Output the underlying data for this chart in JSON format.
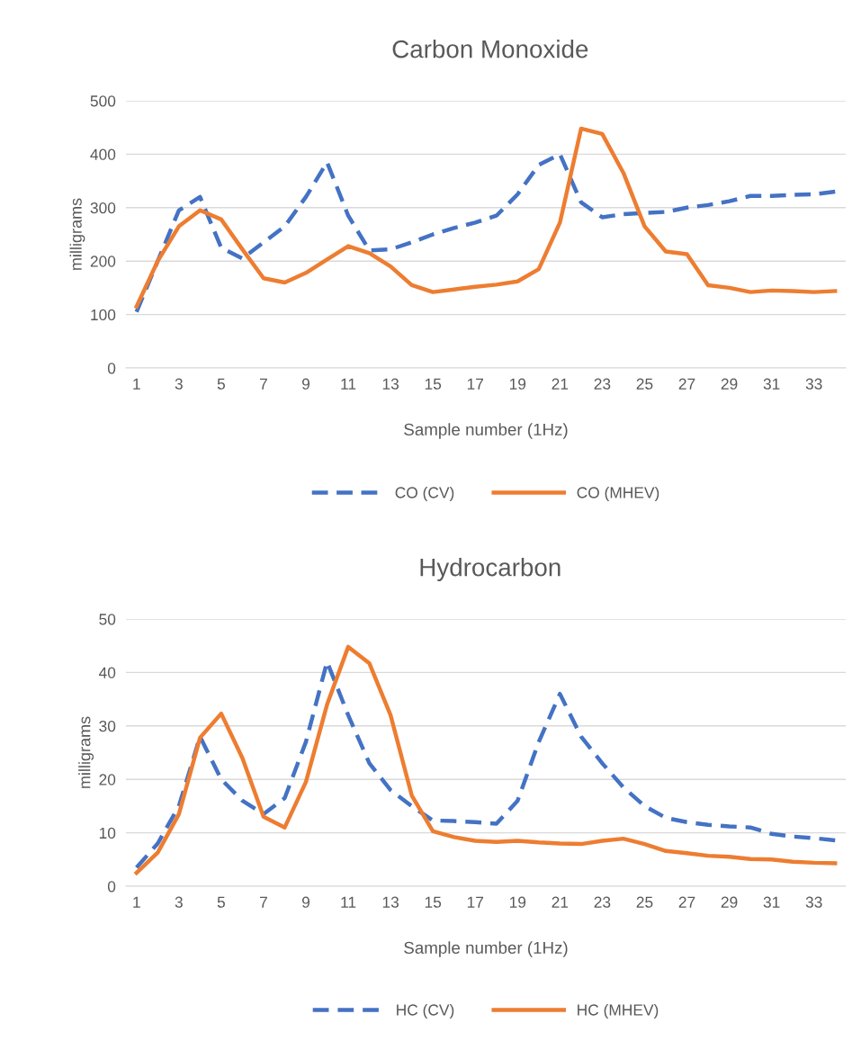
{
  "chart_data": [
    {
      "type": "line",
      "title": "Carbon Monoxide",
      "xlabel": "Sample number (1Hz)",
      "ylabel": "milligrams",
      "categories": [
        "1",
        null,
        "3",
        null,
        "5",
        null,
        "7",
        null,
        "9",
        null,
        "11",
        null,
        "13",
        null,
        "15",
        null,
        "17",
        null,
        "19",
        null,
        "21",
        null,
        "23",
        null,
        "25",
        null,
        "27",
        null,
        "29",
        null,
        "31",
        null,
        "33",
        null
      ],
      "ylim": [
        0,
        500
      ],
      "yticks": [
        0,
        100,
        200,
        300,
        400,
        500
      ],
      "grid": "y",
      "legend": "bottom",
      "series": [
        {
          "name": "CO (CV)",
          "color": "#4472c4",
          "line_style": "dashed",
          "values": [
            105,
            200,
            295,
            320,
            225,
            205,
            235,
            265,
            320,
            385,
            285,
            220,
            222,
            235,
            250,
            262,
            272,
            285,
            325,
            380,
            400,
            310,
            282,
            288,
            290,
            292,
            300,
            305,
            312,
            322,
            322,
            324,
            325,
            330
          ]
        },
        {
          "name": "CO (MHEV)",
          "color": "#ed7d31",
          "line_style": "solid",
          "values": [
            115,
            200,
            265,
            295,
            278,
            222,
            168,
            160,
            178,
            203,
            228,
            215,
            190,
            155,
            142,
            147,
            152,
            156,
            162,
            185,
            272,
            448,
            438,
            365,
            265,
            218,
            213,
            155,
            150,
            142,
            145,
            144,
            142,
            144
          ]
        }
      ]
    },
    {
      "type": "line",
      "title": "Hydrocarbon",
      "xlabel": "Sample number (1Hz)",
      "ylabel": "milligrams",
      "categories": [
        "1",
        null,
        "3",
        null,
        "5",
        null,
        "7",
        null,
        "9",
        null,
        "11",
        null,
        "13",
        null,
        "15",
        null,
        "17",
        null,
        "19",
        null,
        "21",
        null,
        "23",
        null,
        "25",
        null,
        "27",
        null,
        "29",
        null,
        "31",
        null,
        "33",
        null
      ],
      "ylim": [
        0,
        50
      ],
      "yticks": [
        0,
        10,
        20,
        30,
        40,
        50
      ],
      "grid": "y",
      "legend": "bottom",
      "series": [
        {
          "name": "HC (CV)",
          "color": "#4472c4",
          "line_style": "dashed",
          "values": [
            3.5,
            8,
            15,
            28,
            20,
            16,
            13.5,
            16.5,
            27,
            42,
            32,
            23,
            18,
            15,
            12.3,
            12.2,
            12,
            11.7,
            16,
            27,
            36,
            28,
            23,
            18.5,
            15,
            12.8,
            12,
            11.5,
            11.2,
            11,
            9.8,
            9.3,
            9,
            8.6
          ]
        },
        {
          "name": "HC (MHEV)",
          "color": "#ed7d31",
          "line_style": "solid",
          "values": [
            2.5,
            6.3,
            13.5,
            27.8,
            32.3,
            24,
            13,
            11,
            19.5,
            34,
            44.8,
            41.7,
            32,
            17,
            10.3,
            9.2,
            8.5,
            8.3,
            8.5,
            8.2,
            8,
            7.9,
            8.5,
            8.9,
            7.9,
            6.6,
            6.2,
            5.7,
            5.5,
            5.1,
            5,
            4.6,
            4.4,
            4.3
          ]
        }
      ]
    }
  ]
}
